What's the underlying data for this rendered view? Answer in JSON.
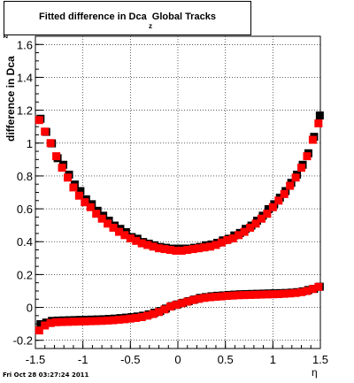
{
  "header": {
    "title": "Fitted difference in Dca  Global Tracks",
    "title_subscript": "z"
  },
  "footer": {
    "timestamp": "Fri Oct 28 03:27:24 2011"
  },
  "chart_data": {
    "type": "scatter",
    "title": "Fitted difference in Dca  Global Tracks",
    "xlabel": "η",
    "ylabel": "difference in Dca",
    "ylabel_subscript": "z",
    "xlim": [
      -1.5,
      1.5
    ],
    "ylim": [
      -0.25,
      1.65
    ],
    "xticks": [
      -1.5,
      -1,
      -0.5,
      0,
      0.5,
      1,
      1.5
    ],
    "xtick_labels": [
      "-1.5",
      "-1",
      "-0.5",
      "0",
      "0.5",
      "1",
      "1.5"
    ],
    "yticks": [
      -0.2,
      0,
      0.2,
      0.4,
      0.6,
      0.8,
      1,
      1.2,
      1.4,
      1.6
    ],
    "ytick_labels": [
      "-0.2",
      "0",
      "0.2",
      "0.4",
      "0.6",
      "0.8",
      "1",
      "1.2",
      "1.4",
      "1.6"
    ],
    "grid": true,
    "series": [
      {
        "color": "#000000",
        "x": [
          -1.46,
          -1.4,
          -1.34,
          -1.28,
          -1.22,
          -1.16,
          -1.1,
          -1.04,
          -0.98,
          -0.92,
          -0.86,
          -0.8,
          -0.74,
          -0.68,
          -0.62,
          -0.56,
          -0.5,
          -0.44,
          -0.38,
          -0.32,
          -0.26,
          -0.2,
          -0.14,
          -0.08,
          -0.02,
          0.04,
          0.1,
          0.16,
          0.22,
          0.28,
          0.34,
          0.4,
          0.46,
          0.52,
          0.58,
          0.64,
          0.7,
          0.76,
          0.82,
          0.88,
          0.94,
          1,
          1.06,
          1.12,
          1.18,
          1.24,
          1.3,
          1.36,
          1.42,
          1.48
        ],
        "y_upper": [
          1.14,
          1.06,
          0.99,
          0.9,
          0.86,
          0.8,
          0.74,
          0.7,
          0.65,
          0.62,
          0.58,
          0.55,
          0.52,
          0.49,
          0.47,
          0.45,
          0.42,
          0.41,
          0.39,
          0.38,
          0.37,
          0.36,
          0.355,
          0.35,
          0.35,
          0.35,
          0.35,
          0.355,
          0.36,
          0.37,
          0.375,
          0.385,
          0.4,
          0.41,
          0.43,
          0.445,
          0.47,
          0.49,
          0.52,
          0.55,
          0.59,
          0.62,
          0.66,
          0.7,
          0.75,
          0.8,
          0.86,
          0.93,
          1.03,
          1.16
        ],
        "y_lower": [
          -0.11,
          -0.1,
          -0.09,
          -0.088,
          -0.087,
          -0.086,
          -0.085,
          -0.084,
          -0.083,
          -0.082,
          -0.081,
          -0.08,
          -0.078,
          -0.076,
          -0.073,
          -0.07,
          -0.067,
          -0.063,
          -0.058,
          -0.05,
          -0.04,
          -0.03,
          -0.015,
          0,
          0.01,
          0.02,
          0.03,
          0.04,
          0.05,
          0.055,
          0.06,
          0.063,
          0.065,
          0.068,
          0.07,
          0.072,
          0.073,
          0.074,
          0.075,
          0.076,
          0.077,
          0.078,
          0.079,
          0.08,
          0.082,
          0.085,
          0.09,
          0.098,
          0.105,
          0.118
        ]
      },
      {
        "color": "#ff0000",
        "x": [
          -1.46,
          -1.4,
          -1.34,
          -1.28,
          -1.22,
          -1.16,
          -1.1,
          -1.04,
          -0.98,
          -0.92,
          -0.86,
          -0.8,
          -0.74,
          -0.68,
          -0.62,
          -0.56,
          -0.5,
          -0.44,
          -0.38,
          -0.32,
          -0.26,
          -0.2,
          -0.14,
          -0.08,
          -0.02,
          0.04,
          0.1,
          0.16,
          0.22,
          0.28,
          0.34,
          0.4,
          0.46,
          0.52,
          0.58,
          0.64,
          0.7,
          0.76,
          0.82,
          0.88,
          0.94,
          1,
          1.06,
          1.12,
          1.18,
          1.24,
          1.3,
          1.36,
          1.42,
          1.48
        ],
        "y_upper": [
          1.14,
          1.07,
          1,
          0.92,
          0.85,
          0.79,
          0.73,
          0.68,
          0.64,
          0.61,
          0.57,
          0.54,
          0.51,
          0.485,
          0.46,
          0.44,
          0.42,
          0.405,
          0.39,
          0.38,
          0.37,
          0.36,
          0.355,
          0.35,
          0.345,
          0.345,
          0.35,
          0.355,
          0.36,
          0.365,
          0.37,
          0.38,
          0.395,
          0.41,
          0.42,
          0.44,
          0.46,
          0.485,
          0.51,
          0.54,
          0.57,
          0.61,
          0.65,
          0.69,
          0.74,
          0.79,
          0.85,
          0.92,
          1.02,
          1.12
        ],
        "y_lower": [
          -0.14,
          -0.11,
          -0.095,
          -0.09,
          -0.089,
          -0.088,
          -0.087,
          -0.086,
          -0.085,
          -0.084,
          -0.083,
          -0.082,
          -0.08,
          -0.078,
          -0.075,
          -0.072,
          -0.068,
          -0.064,
          -0.059,
          -0.05,
          -0.04,
          -0.028,
          -0.012,
          0.005,
          0.015,
          0.025,
          0.035,
          0.045,
          0.052,
          0.058,
          0.062,
          0.065,
          0.067,
          0.07,
          0.072,
          0.074,
          0.075,
          0.076,
          0.077,
          0.078,
          0.079,
          0.08,
          0.081,
          0.083,
          0.085,
          0.088,
          0.093,
          0.1,
          0.112,
          0.125
        ]
      }
    ]
  }
}
